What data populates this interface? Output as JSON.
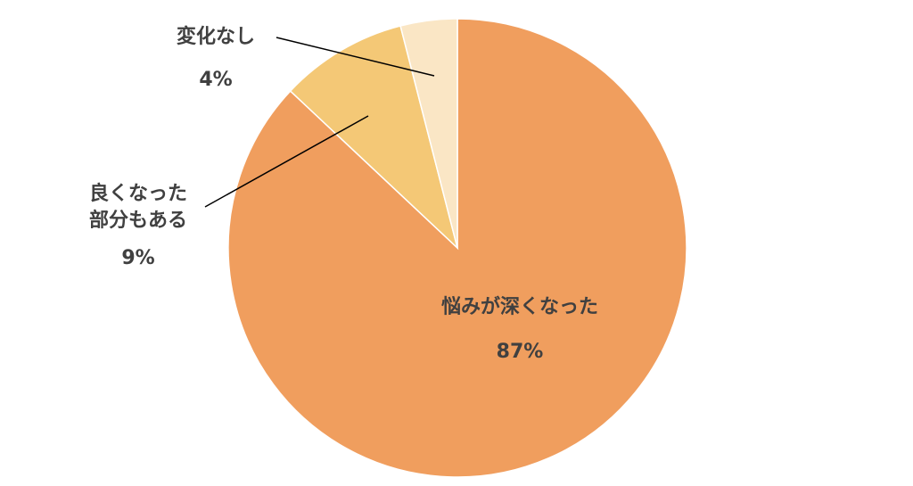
{
  "chart_data": {
    "type": "pie",
    "categories": [
      "悩みが深くなった",
      "良くなった\n部分もある",
      "変化なし"
    ],
    "values": [
      87,
      9,
      4
    ],
    "value_labels": [
      "87%",
      "9%",
      "4%"
    ],
    "colors": [
      "#f09e5e",
      "#f4c876",
      "#fae6c5"
    ]
  }
}
